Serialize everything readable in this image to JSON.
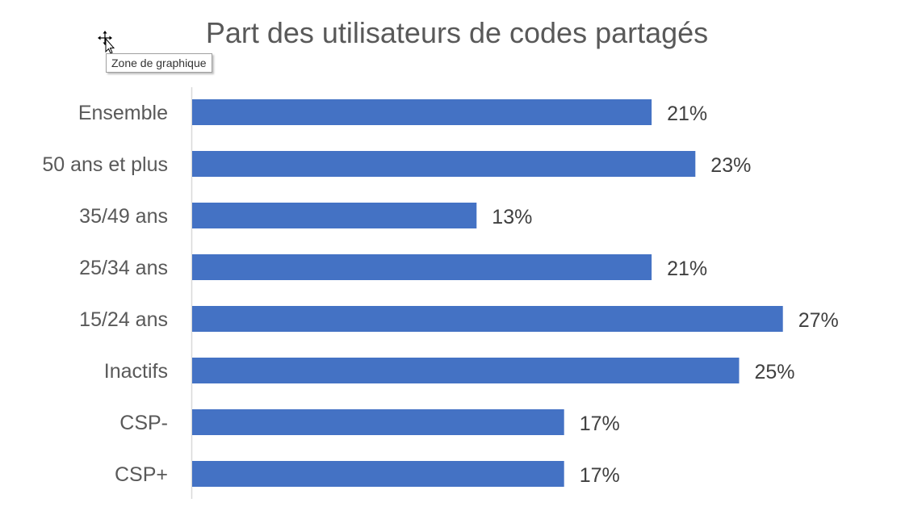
{
  "tooltip": {
    "text": "Zone de graphique"
  },
  "cursor": {
    "icon": "move-cursor-icon"
  },
  "chart_data": {
    "type": "bar",
    "orientation": "horizontal",
    "title": "Part des utilisateurs de codes partagés",
    "categories": [
      "Ensemble",
      "50 ans et plus",
      "35/49 ans",
      "25/34 ans",
      "15/24 ans",
      "Inactifs",
      "CSP-",
      "CSP+"
    ],
    "values": [
      21,
      23,
      13,
      21,
      27,
      25,
      17,
      17
    ],
    "data_labels": [
      "21%",
      "23%",
      "13%",
      "21%",
      "27%",
      "25%",
      "17%",
      "17%"
    ],
    "unit": "%",
    "xlim": [
      0,
      30
    ],
    "grid": false,
    "legend": "none",
    "colors": {
      "bar": "#4472C4",
      "axis": "#d9d9d9",
      "label": "#595959",
      "data_label": "#404040"
    }
  }
}
